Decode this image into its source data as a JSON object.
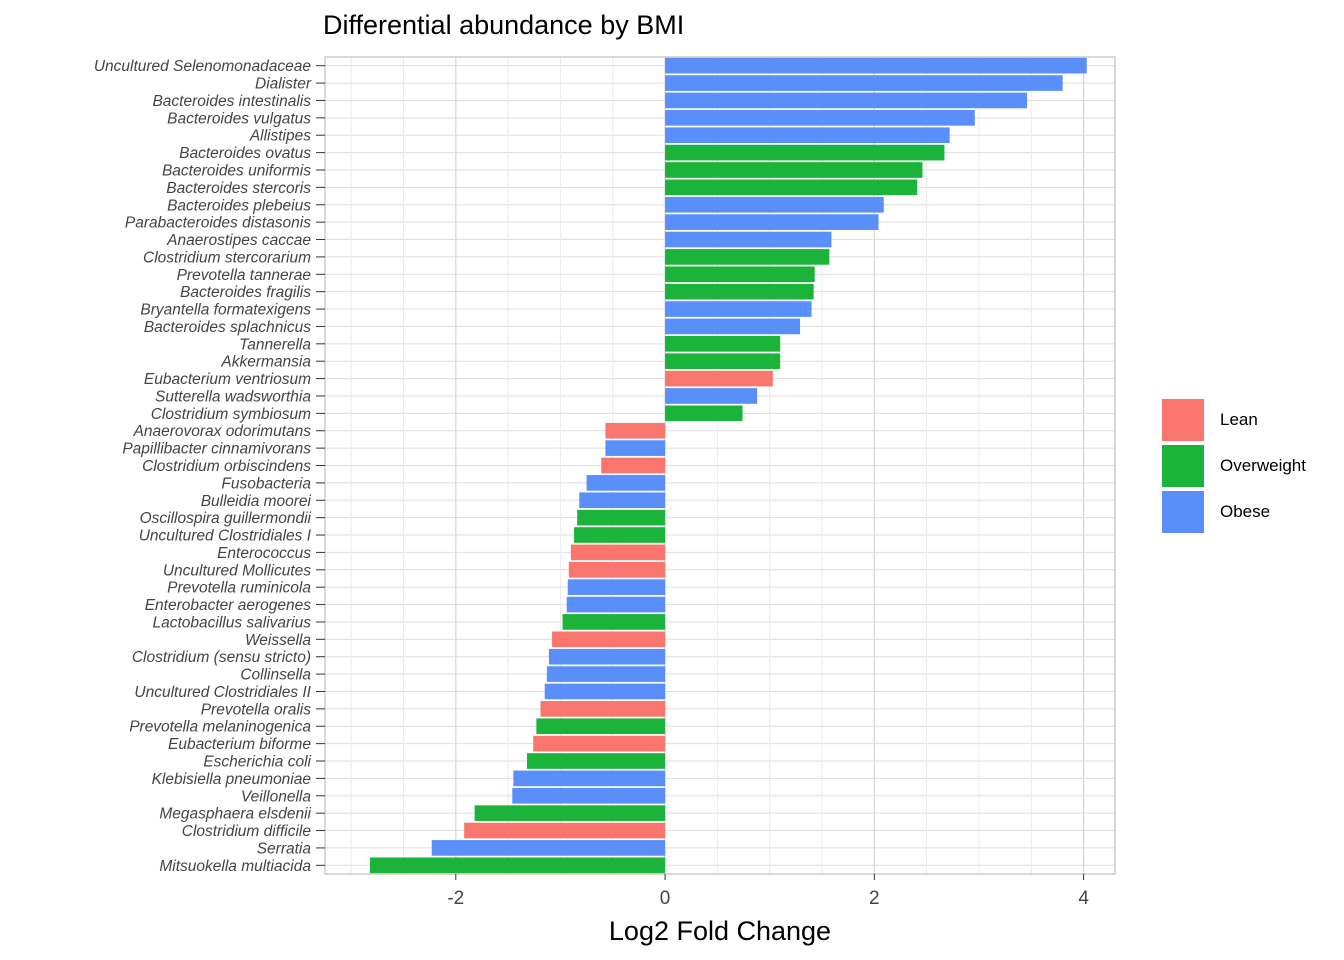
{
  "chart_data": {
    "type": "bar",
    "orientation": "horizontal",
    "title": "Differential abundance by BMI",
    "xlabel": "Log2 Fold Change",
    "ylabel": "",
    "xlim": [
      -3.25,
      4.3
    ],
    "x_ticks": [
      -2,
      0,
      2,
      4
    ],
    "x_tick_labels": [
      "-2",
      "0",
      "2",
      "4"
    ],
    "grid": true,
    "legend_position": "right",
    "legend": [
      {
        "name": "Lean",
        "color": "#F8766D"
      },
      {
        "name": "Overweight",
        "color": "#1CB33A"
      },
      {
        "name": "Obese",
        "color": "#5A8FFA"
      }
    ],
    "categories": [
      "Uncultured Selenomonadaceae",
      "Dialister",
      "Bacteroides intestinalis",
      "Bacteroides vulgatus",
      "Allistipes",
      "Bacteroides ovatus",
      "Bacteroides uniformis",
      "Bacteroides stercoris",
      "Bacteroides plebeius",
      "Parabacteroides distasonis",
      "Anaerostipes caccae",
      "Clostridium stercorarium",
      "Prevotella tannerae",
      "Bacteroides fragilis",
      "Bryantella formatexigens",
      "Bacteroides splachnicus",
      "Tannerella",
      "Akkermansia",
      "Eubacterium ventriosum",
      "Sutterella wadsworthia",
      "Clostridium symbiosum",
      "Anaerovorax odorimutans",
      "Papillibacter cinnamivorans",
      "Clostridium orbiscindens",
      "Fusobacteria",
      "Bulleidia moorei",
      "Oscillospira guillermondii",
      "Uncultured Clostridiales I",
      "Enterococcus",
      "Uncultured Mollicutes",
      "Prevotella ruminicola",
      "Enterobacter aerogenes",
      "Lactobacillus salivarius",
      "Weissella",
      "Clostridium (sensu stricto)",
      "Collinsella",
      "Uncultured Clostridiales II",
      "Prevotella oralis",
      "Prevotella melaninogenica",
      "Eubacterium biforme",
      "Escherichia coli",
      "Klebisiella pneumoniae",
      "Veillonella",
      "Megasphaera elsdenii",
      "Clostridium difficile",
      "Serratia",
      "Mitsuokella multiacida"
    ],
    "values": [
      4.03,
      3.8,
      3.46,
      2.96,
      2.72,
      2.67,
      2.46,
      2.41,
      2.09,
      2.04,
      1.59,
      1.57,
      1.43,
      1.42,
      1.4,
      1.29,
      1.1,
      1.1,
      1.03,
      0.88,
      0.74,
      -0.57,
      -0.57,
      -0.61,
      -0.75,
      -0.82,
      -0.84,
      -0.87,
      -0.9,
      -0.92,
      -0.93,
      -0.94,
      -0.98,
      -1.08,
      -1.11,
      -1.13,
      -1.15,
      -1.19,
      -1.23,
      -1.26,
      -1.32,
      -1.45,
      -1.46,
      -1.82,
      -1.92,
      -2.23,
      -2.82
    ],
    "groups": [
      "Obese",
      "Obese",
      "Obese",
      "Obese",
      "Obese",
      "Overweight",
      "Overweight",
      "Overweight",
      "Obese",
      "Obese",
      "Obese",
      "Overweight",
      "Overweight",
      "Overweight",
      "Obese",
      "Obese",
      "Overweight",
      "Overweight",
      "Lean",
      "Obese",
      "Overweight",
      "Lean",
      "Obese",
      "Lean",
      "Obese",
      "Obese",
      "Overweight",
      "Overweight",
      "Lean",
      "Lean",
      "Obese",
      "Obese",
      "Overweight",
      "Lean",
      "Obese",
      "Obese",
      "Obese",
      "Lean",
      "Overweight",
      "Lean",
      "Overweight",
      "Obese",
      "Obese",
      "Overweight",
      "Lean",
      "Obese",
      "Overweight"
    ]
  },
  "colors": {
    "Lean": "#F8766D",
    "Overweight": "#1CB33A",
    "Obese": "#5A8FFA",
    "grid": "#DDDDDD",
    "panel_border": "#B3B3B3"
  }
}
